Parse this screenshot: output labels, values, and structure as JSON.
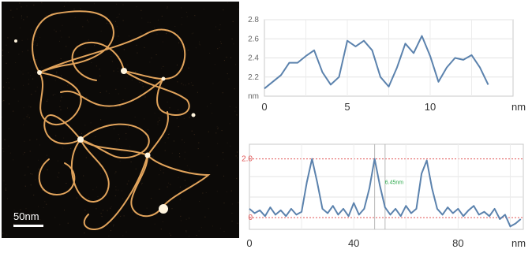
{
  "figure": {
    "scale_bar_label": "50nm"
  },
  "colors": {
    "dna_strand": "#e2a45c",
    "line_series": "#5b82ad",
    "red_guide": "#e05555",
    "marker_text": "#2aa84a"
  },
  "chart_data": [
    {
      "type": "line",
      "title": "",
      "xlabel": "",
      "ylabel": "",
      "x_unit_label": "nm",
      "y_unit_label": "nm",
      "xlim": [
        0,
        15
      ],
      "ylim": [
        2.0,
        2.8
      ],
      "x_ticks": [
        "0",
        "5",
        "10"
      ],
      "x_tick_values": [
        0,
        5,
        10
      ],
      "y_ticks": [
        "2.8",
        "2.6",
        "2.4",
        "2.2"
      ],
      "y_tick_values": [
        2.8,
        2.6,
        2.4,
        2.2
      ],
      "grid": true,
      "series": [
        {
          "x": [
            0,
            0.5,
            1,
            1.5,
            2,
            2.5,
            3,
            3.5,
            4,
            4.5,
            5,
            5.5,
            6,
            6.5,
            7,
            7.5,
            8,
            8.5,
            9,
            9.5,
            10,
            10.5,
            11,
            11.5,
            12,
            12.5,
            13,
            13.5
          ],
          "values": [
            2.08,
            2.15,
            2.22,
            2.35,
            2.35,
            2.42,
            2.48,
            2.25,
            2.12,
            2.2,
            2.58,
            2.52,
            2.58,
            2.48,
            2.2,
            2.1,
            2.3,
            2.55,
            2.45,
            2.63,
            2.42,
            2.15,
            2.3,
            2.4,
            2.38,
            2.43,
            2.3,
            2.12
          ]
        }
      ]
    },
    {
      "type": "line",
      "title": "",
      "xlabel": "",
      "ylabel": "",
      "x_unit_label": "nm",
      "xlim": [
        0,
        105
      ],
      "ylim": [
        -0.4,
        2.5
      ],
      "x_ticks": [
        "0",
        "40",
        "80"
      ],
      "x_tick_values": [
        0,
        40,
        80
      ],
      "y_ticks": [
        "2.0",
        "0"
      ],
      "y_tick_values": [
        2.0,
        0
      ],
      "grid": true,
      "annotation": "6.45nm",
      "series": [
        {
          "x": [
            0,
            2,
            4,
            6,
            8,
            10,
            12,
            14,
            16,
            18,
            20,
            22,
            24,
            26,
            28,
            30,
            32,
            34,
            36,
            38,
            40,
            42,
            44,
            46,
            48,
            50,
            52,
            54,
            56,
            58,
            60,
            62,
            64,
            66,
            68,
            70,
            72,
            74,
            76,
            78,
            80,
            82,
            84,
            86,
            88,
            90,
            92,
            94,
            96,
            98,
            100,
            102,
            104
          ],
          "values": [
            0.3,
            0.15,
            0.25,
            0.05,
            0.35,
            0.1,
            0.25,
            0.05,
            0.3,
            0.1,
            0.2,
            1.2,
            2.0,
            1.2,
            0.3,
            0.15,
            0.4,
            0.1,
            0.3,
            0.05,
            0.5,
            0.1,
            0.3,
            1.0,
            2.0,
            1.1,
            0.35,
            0.1,
            0.3,
            0.05,
            0.4,
            0.15,
            0.3,
            1.5,
            1.95,
            1.0,
            0.3,
            0.1,
            0.35,
            0.15,
            0.3,
            0.05,
            0.25,
            0.4,
            0.1,
            0.2,
            0.05,
            0.3,
            -0.05,
            0.1,
            -0.3,
            -0.2,
            -0.05
          ]
        }
      ]
    }
  ]
}
